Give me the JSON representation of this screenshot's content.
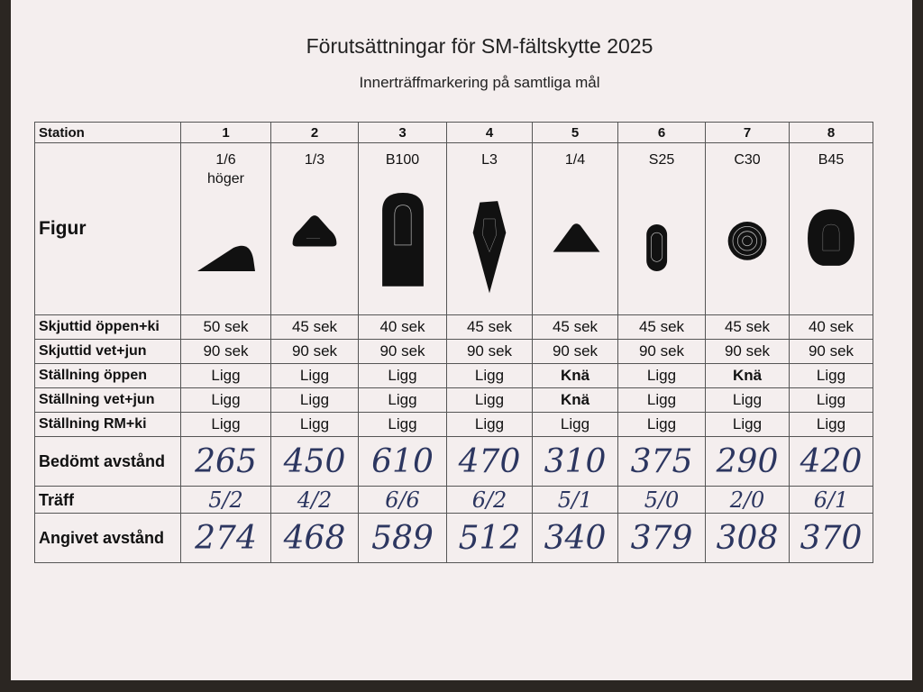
{
  "header": {
    "title": "Förutsättningar för SM-fältskytte 2025",
    "subtitle": "Innerträffmarkering på samtliga mål"
  },
  "table": {
    "station_label": "Station",
    "stations": [
      "1",
      "2",
      "3",
      "4",
      "5",
      "6",
      "7",
      "8"
    ],
    "figure_label": "Figur",
    "figures": [
      "1/6\nhöger",
      "1/3",
      "B100",
      "L3",
      "1/4",
      "S25",
      "C30",
      "B45"
    ],
    "rows": [
      {
        "label": "Skjuttid öppen+ki",
        "cells": [
          "50 sek",
          "45 sek",
          "40 sek",
          "45 sek",
          "45 sek",
          "45 sek",
          "45 sek",
          "40 sek"
        ]
      },
      {
        "label": "Skjuttid vet+jun",
        "cells": [
          "90 sek",
          "90 sek",
          "90 sek",
          "90 sek",
          "90 sek",
          "90 sek",
          "90 sek",
          "90 sek"
        ]
      },
      {
        "label": "Ställning öppen",
        "cells": [
          "Ligg",
          "Ligg",
          "Ligg",
          "Ligg",
          {
            "text": "Knä",
            "bold": true
          },
          "Ligg",
          {
            "text": "Knä",
            "bold": true
          },
          "Ligg"
        ]
      },
      {
        "label": "Ställning vet+jun",
        "cells": [
          "Ligg",
          "Ligg",
          "Ligg",
          "Ligg",
          {
            "text": "Knä",
            "bold": true
          },
          "Ligg",
          "Ligg",
          "Ligg"
        ]
      },
      {
        "label": "Ställning RM+ki",
        "cells": [
          "Ligg",
          "Ligg",
          "Ligg",
          "Ligg",
          "Ligg",
          "Ligg",
          "Ligg",
          "Ligg"
        ]
      },
      {
        "label": "Bedömt avstånd",
        "handwritten": true,
        "cells": [
          265,
          450,
          610,
          470,
          310,
          375,
          290,
          420
        ]
      },
      {
        "label": "Träff",
        "handwritten": true,
        "cells": [
          "5/2",
          "4/2",
          "6/6",
          "6/2",
          "5/1",
          "5/0",
          "2/0",
          "6/1"
        ]
      },
      {
        "label": "Angivet avstånd",
        "handwritten": true,
        "cells": [
          274,
          468,
          589,
          512,
          340,
          379,
          308,
          370
        ]
      }
    ]
  }
}
